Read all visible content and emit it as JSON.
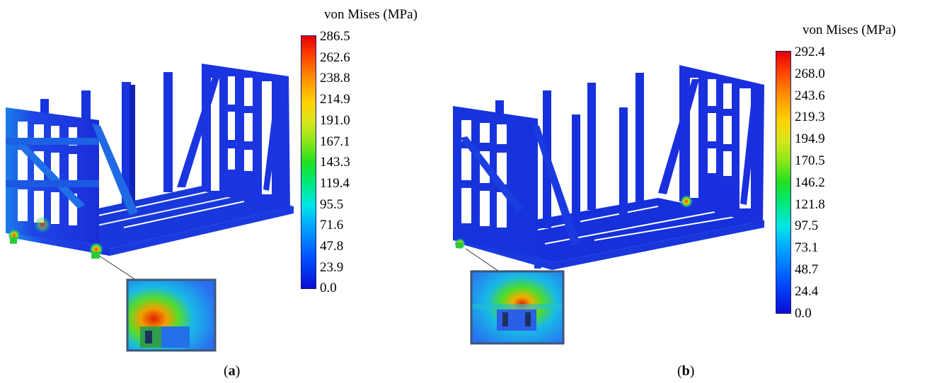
{
  "panels": [
    {
      "colorbar_title": "von Mises (MPa)",
      "ticks": [
        "286.5",
        "262.6",
        "238.8",
        "214.9",
        "191.0",
        "167.1",
        "143.3",
        "119.4",
        "95.5",
        "71.6",
        "47.8",
        "23.9",
        "0.0"
      ],
      "caption_open": "(",
      "caption_letter": "a",
      "caption_close": ")"
    },
    {
      "colorbar_title": "von Mises (MPa)",
      "ticks": [
        "292.4",
        "268.0",
        "243.6",
        "219.3",
        "194.9",
        "170.5",
        "146.2",
        "121.8",
        "97.5",
        "73.1",
        "48.7",
        "24.4",
        "0.0"
      ],
      "caption_open": "(",
      "caption_letter": "b",
      "caption_close": ")"
    }
  ],
  "colors": {
    "frame": "#1530e0",
    "frame_dark": "#0a1ca8",
    "hot": "#e53000",
    "warm": "#f2c200",
    "mid": "#2fd84a",
    "cool": "#17b4f0",
    "inset_border": "#3d5678"
  }
}
